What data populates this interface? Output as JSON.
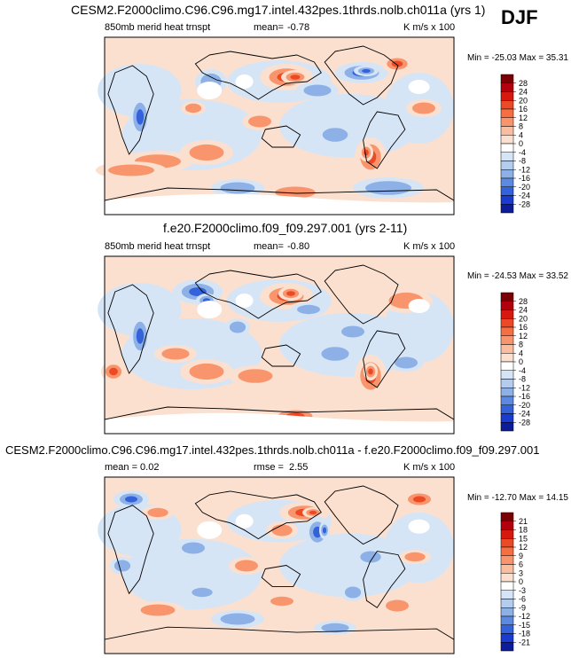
{
  "season": "DJF",
  "panels": [
    {
      "title": "CESM2.F2000climo.C96.C96.mg17.intel.432pes.1thrds.nolb.ch011a (yrs 1)",
      "left_label": "850mb merid heat trnspt",
      "stat1_label": "mean=",
      "stat1_value": "-0.78",
      "units": "K m/s x 100",
      "minmax": "Min = -25.03 Max = 35.31"
    },
    {
      "title": "f.e20.F2000climo.f09_f09.297.001 (yrs 2-11)",
      "left_label": "850mb merid heat trnspt",
      "stat1_label": "mean=",
      "stat1_value": "-0.80",
      "units": "K m/s x 100",
      "minmax": "Min = -24.53 Max = 33.52"
    },
    {
      "title": "CESM2.F2000climo.C96.C96.mg17.intel.432pes.1thrds.nolb.ch011a - f.e20.F2000climo.f09_f09.297.001",
      "left_label": "mean =  0.02",
      "stat1_label": "rmse =",
      "stat1_value": "2.55",
      "units": "K m/s x 100",
      "minmax": "Min = -12.70 Max = 14.15"
    }
  ],
  "chart_data": [
    {
      "type": "heatmap",
      "title": "CESM2.F2000climo.C96.C96.mg17.intel.432pes.1thrds.nolb.ch011a (yrs 1)",
      "variable": "850mb merid heat trnspt",
      "units": "K m/s x 100",
      "mean": -0.78,
      "min": -25.03,
      "max": 35.31,
      "colorbar_levels": [
        28,
        24,
        20,
        16,
        12,
        8,
        4,
        0,
        -4,
        -8,
        -12,
        -16,
        -20,
        -24,
        -28
      ],
      "colorbar_colors": [
        "#7b0005",
        "#b3000e",
        "#d7180f",
        "#ec4a26",
        "#f56f43",
        "#f9956c",
        "#fbbd9f",
        "#fbe0d0",
        "#ffffff",
        "#d6e5f6",
        "#b4cdee",
        "#8db1e6",
        "#5c8ae1",
        "#3362db",
        "#1a3bcf",
        "#0d1d9a"
      ],
      "x_range_deg_lon": [
        0,
        360
      ],
      "y_range_deg_lat": [
        -90,
        90
      ]
    },
    {
      "type": "heatmap",
      "title": "f.e20.F2000climo.f09_f09.297.001 (yrs 2-11)",
      "variable": "850mb merid heat trnspt",
      "units": "K m/s x 100",
      "mean": -0.8,
      "min": -24.53,
      "max": 33.52,
      "colorbar_levels": [
        28,
        24,
        20,
        16,
        12,
        8,
        4,
        0,
        -4,
        -8,
        -12,
        -16,
        -20,
        -24,
        -28
      ],
      "colorbar_colors": [
        "#7b0005",
        "#b3000e",
        "#d7180f",
        "#ec4a26",
        "#f56f43",
        "#f9956c",
        "#fbbd9f",
        "#fbe0d0",
        "#ffffff",
        "#d6e5f6",
        "#b4cdee",
        "#8db1e6",
        "#5c8ae1",
        "#3362db",
        "#1a3bcf",
        "#0d1d9a"
      ],
      "x_range_deg_lon": [
        0,
        360
      ],
      "y_range_deg_lat": [
        -90,
        90
      ]
    },
    {
      "type": "heatmap",
      "title": "CESM2.F2000climo.C96.C96.mg17.intel.432pes.1thrds.nolb.ch011a - f.e20.F2000climo.f09_f09.297.001",
      "variable": "difference",
      "units": "K m/s x 100",
      "mean": 0.02,
      "rmse": 2.55,
      "min": -12.7,
      "max": 14.15,
      "colorbar_levels": [
        21,
        18,
        15,
        12,
        9,
        6,
        3,
        0,
        -3,
        -6,
        -9,
        -12,
        -15,
        -18,
        -21
      ],
      "colorbar_colors": [
        "#7b0005",
        "#b3000e",
        "#d7180f",
        "#ec4a26",
        "#f56f43",
        "#f9956c",
        "#fbbd9f",
        "#fbe0d0",
        "#ffffff",
        "#d6e5f6",
        "#b4cdee",
        "#8db1e6",
        "#5c8ae1",
        "#3362db",
        "#1a3bcf",
        "#0d1d9a"
      ],
      "x_range_deg_lon": [
        0,
        360
      ],
      "y_range_deg_lat": [
        -90,
        90
      ]
    }
  ]
}
